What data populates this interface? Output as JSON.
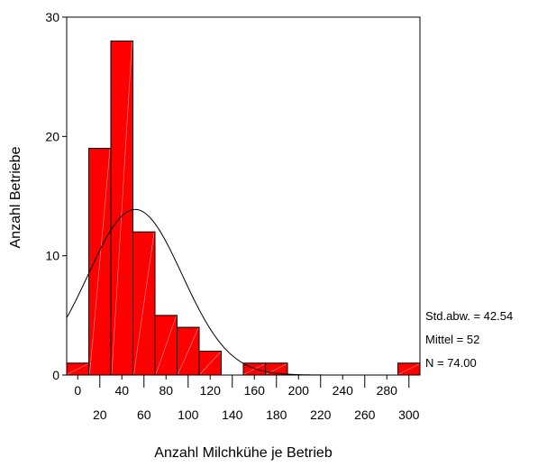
{
  "chart_data": {
    "type": "bar",
    "xlabel": "Anzahl Milchkühe je Betrieb",
    "ylabel": "Anzahl Betriebe",
    "bin_width": 20,
    "bins": [
      {
        "start": -10,
        "end": 10,
        "count": 1
      },
      {
        "start": 10,
        "end": 30,
        "count": 19
      },
      {
        "start": 30,
        "end": 50,
        "count": 28
      },
      {
        "start": 50,
        "end": 70,
        "count": 12
      },
      {
        "start": 70,
        "end": 90,
        "count": 5
      },
      {
        "start": 90,
        "end": 110,
        "count": 4
      },
      {
        "start": 110,
        "end": 130,
        "count": 2
      },
      {
        "start": 130,
        "end": 150,
        "count": 0
      },
      {
        "start": 150,
        "end": 170,
        "count": 1
      },
      {
        "start": 170,
        "end": 190,
        "count": 1
      },
      {
        "start": 190,
        "end": 210,
        "count": 0
      },
      {
        "start": 210,
        "end": 230,
        "count": 0
      },
      {
        "start": 230,
        "end": 250,
        "count": 0
      },
      {
        "start": 250,
        "end": 270,
        "count": 0
      },
      {
        "start": 270,
        "end": 290,
        "count": 0
      },
      {
        "start": 290,
        "end": 310,
        "count": 1
      }
    ],
    "xlim": [
      -10,
      310
    ],
    "ylim": [
      0,
      30
    ],
    "yticks": [
      0,
      10,
      20,
      30
    ],
    "xticks_upper": [
      0,
      40,
      80,
      120,
      160,
      200,
      240,
      280
    ],
    "xticks_lower": [
      20,
      60,
      100,
      140,
      180,
      220,
      260,
      300
    ],
    "normal_curve": {
      "mean": 52,
      "sd": 42.54,
      "n": 74
    },
    "bar_color": "#ff0000",
    "stats": {
      "std": "Std.abw. = 42.54",
      "mean": "Mittel = 52",
      "n": "N = 74.00"
    }
  }
}
